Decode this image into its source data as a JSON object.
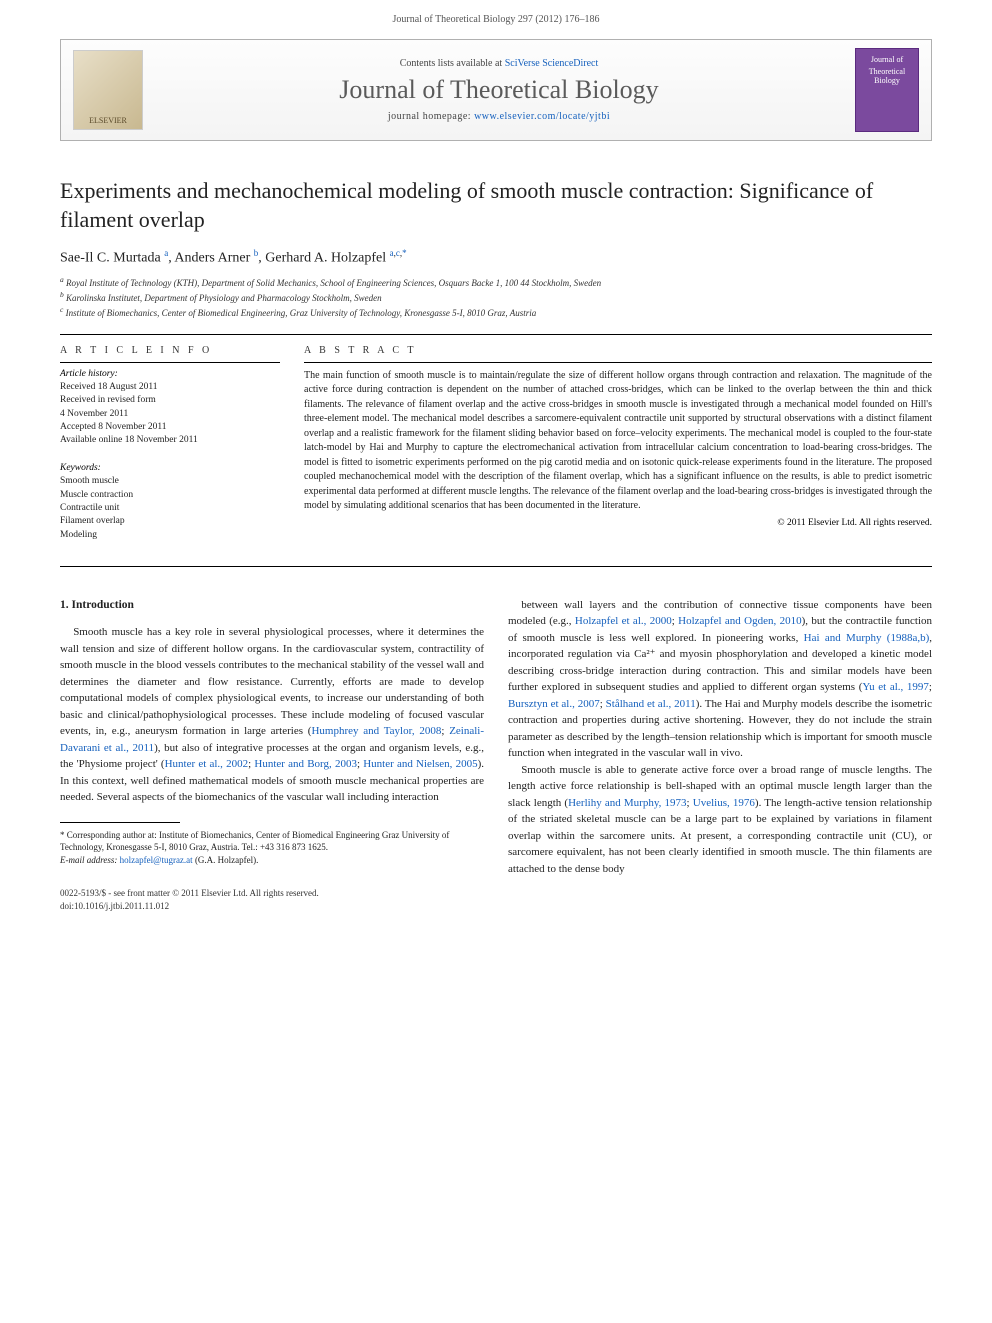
{
  "header": {
    "running": "Journal of Theoretical Biology 297 (2012) 176–186"
  },
  "banner": {
    "publisher_logo_text": "ELSEVIER",
    "contents_prefix": "Contents lists available at ",
    "contents_link": "SciVerse ScienceDirect",
    "journal_name": "Journal of Theoretical Biology",
    "homepage_prefix": "journal homepage: ",
    "homepage_link": "www.elsevier.com/locate/yjtbi",
    "cover_small_top": "Journal of",
    "cover_small_title": "Theoretical Biology"
  },
  "title": "Experiments and mechanochemical modeling of smooth muscle contraction: Significance of filament overlap",
  "authors_html": "Sae-Il C. Murtada <sup>a</sup>, Anders Arner <sup>b</sup>, Gerhard A. Holzapfel <sup>a,c,*</sup>",
  "affiliations": {
    "a": "Royal Institute of Technology (KTH), Department of Solid Mechanics, School of Engineering Sciences, Osquars Backe 1, 100 44 Stockholm, Sweden",
    "b": "Karolinska Institutet, Department of Physiology and Pharmacology Stockholm, Sweden",
    "c": "Institute of Biomechanics, Center of Biomedical Engineering, Graz University of Technology, Kronesgasse 5-I, 8010 Graz, Austria"
  },
  "article_info": {
    "heading": "A R T I C L E   I N F O",
    "history_label": "Article history:",
    "history": [
      "Received 18 August 2011",
      "Received in revised form",
      "4 November 2011",
      "Accepted 8 November 2011",
      "Available online 18 November 2011"
    ],
    "keywords_label": "Keywords:",
    "keywords": [
      "Smooth muscle",
      "Muscle contraction",
      "Contractile unit",
      "Filament overlap",
      "Modeling"
    ]
  },
  "abstract": {
    "heading": "A B S T R A C T",
    "text": "The main function of smooth muscle is to maintain/regulate the size of different hollow organs through contraction and relaxation. The magnitude of the active force during contraction is dependent on the number of attached cross-bridges, which can be linked to the overlap between the thin and thick filaments. The relevance of filament overlap and the active cross-bridges in smooth muscle is investigated through a mechanical model founded on Hill's three-element model. The mechanical model describes a sarcomere-equivalent contractile unit supported by structural observations with a distinct filament overlap and a realistic framework for the filament sliding behavior based on force–velocity experiments. The mechanical model is coupled to the four-state latch-model by Hai and Murphy to capture the electromechanical activation from intracellular calcium concentration to load-bearing cross-bridges. The model is fitted to isometric experiments performed on the pig carotid media and on isotonic quick-release experiments found in the literature. The proposed coupled mechanochemical model with the description of the filament overlap, which has a significant influence on the results, is able to predict isometric experimental data performed at different muscle lengths. The relevance of the filament overlap and the load-bearing cross-bridges is investigated through the model by simulating additional scenarios that has been documented in the literature.",
    "copyright": "© 2011 Elsevier Ltd. All rights reserved."
  },
  "body": {
    "section_number": "1.",
    "section_title": "Introduction",
    "col1_p1_pre": "Smooth muscle has a key role in several physiological processes, where it determines the wall tension and size of different hollow organs. In the cardiovascular system, contractility of smooth muscle in the blood vessels contributes to the mechanical stability of the vessel wall and determines the diameter and flow resistance. Currently, efforts are made to develop computational models of complex physiological events, to increase our understanding of both basic and clinical/pathophysiological processes. These include modeling of focused vascular events, in, e.g., aneurysm formation in large arteries (",
    "col1_link1": "Humphrey and Taylor, 2008",
    "col1_sep1": "; ",
    "col1_link2": "Zeinali-Davarani et al., 2011",
    "col1_p1_mid1": "), but also of integrative processes at the organ and organism levels, e.g., the 'Physiome project' (",
    "col1_link3": "Hunter et al., 2002",
    "col1_sep2": "; ",
    "col1_link4": "Hunter and Borg, 2003",
    "col1_sep3": "; ",
    "col1_link5": "Hunter and Nielsen, 2005",
    "col1_p1_post": "). In this context, well defined mathematical models of smooth muscle mechanical properties are needed. Several aspects of the biomechanics of the vascular wall including interaction",
    "col2_p1_pre": "between wall layers and the contribution of connective tissue components have been modeled (e.g., ",
    "col2_link1": "Holzapfel et al., 2000",
    "col2_sep1": "; ",
    "col2_link2": "Holzapfel and Ogden, 2010",
    "col2_p1_mid1": "), but the contractile function of smooth muscle is less well explored. In pioneering works, ",
    "col2_link3": "Hai and Murphy (1988a,b)",
    "col2_p1_mid2": ", incorporated regulation via Ca²⁺ and myosin phosphorylation and developed a kinetic model describing cross-bridge interaction during contraction. This and similar models have been further explored in subsequent studies and applied to different organ systems (",
    "col2_link4": "Yu et al., 1997",
    "col2_sep2": "; ",
    "col2_link5": "Bursztyn et al., 2007",
    "col2_sep3": "; ",
    "col2_link6": "Stålhand et al., 2011",
    "col2_p1_post": "). The Hai and Murphy models describe the isometric contraction and properties during active shortening. However, they do not include the strain parameter as described by the length–tension relationship which is important for smooth muscle function when integrated in the vascular wall in vivo.",
    "col2_p2_pre": "Smooth muscle is able to generate active force over a broad range of muscle lengths. The length active force relationship is bell-shaped with an optimal muscle length larger than the slack length (",
    "col2_link7": "Herlihy and Murphy, 1973",
    "col2_sep4": "; ",
    "col2_link8": "Uvelius, 1976",
    "col2_p2_post": "). The length-active tension relationship of the striated skeletal muscle can be a large part to be explained by variations in filament overlap within the sarcomere units. At present, a corresponding contractile unit (CU), or sarcomere equivalent, has not been clearly identified in smooth muscle. The thin filaments are attached to the dense body"
  },
  "footnote": {
    "corr": "* Corresponding author at: Institute of Biomechanics, Center of Biomedical Engineering Graz University of Technology, Kronesgasse 5-I, 8010 Graz, Austria. Tel.: +43 316 873 1625.",
    "email_label": "E-mail address:",
    "email": "holzapfel@tugraz.at",
    "email_who": "(G.A. Holzapfel)."
  },
  "doi": {
    "line1": "0022-5193/$ - see front matter © 2011 Elsevier Ltd. All rights reserved.",
    "line2": "doi:10.1016/j.jtbi.2011.11.012"
  },
  "colors": {
    "link": "#1560bd",
    "text": "#222222",
    "cover_bg": "#7b4a9e"
  }
}
